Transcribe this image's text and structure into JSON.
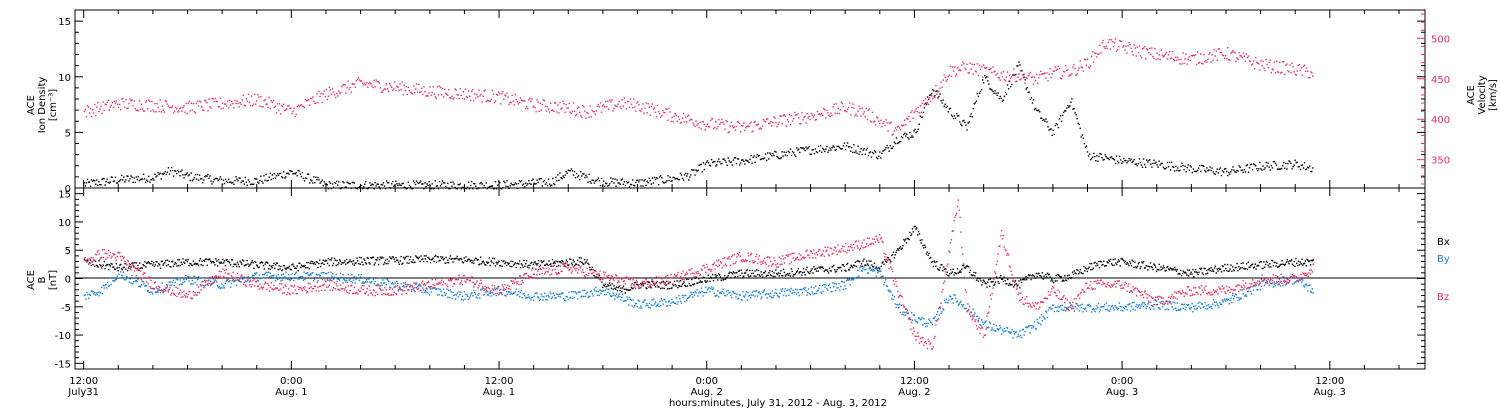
{
  "colors": {
    "black": "#000000",
    "pink": "#e8305a",
    "blue": "#1a7fd8"
  },
  "xaxis": {
    "ticks": [
      {
        "hour": 0,
        "line1": "12:00",
        "line2": "July31"
      },
      {
        "hour": 12,
        "line1": "0:00",
        "line2": "Aug. 1"
      },
      {
        "hour": 24,
        "line1": "12:00",
        "line2": "Aug. 1"
      },
      {
        "hour": 36,
        "line1": "0:00",
        "line2": "Aug. 2"
      },
      {
        "hour": 48,
        "line1": "12:00",
        "line2": "Aug. 2"
      },
      {
        "hour": 60,
        "line1": "0:00",
        "line2": "Aug. 3"
      },
      {
        "hour": 72,
        "line1": "12:00",
        "line2": "Aug. 3"
      }
    ],
    "title": "hours:minutes, July 31, 2012 - Aug.  3, 2012"
  },
  "chart_data": [
    {
      "type": "scatter",
      "xunit": "hours since 12:00 July 31, 2012",
      "xlim": [
        -0.5,
        77.5
      ],
      "left_axis": {
        "label_lines": [
          "ACE",
          "Ion Density",
          "[cm⁻³]"
        ],
        "ylim": [
          0,
          16
        ],
        "ticks": [
          0,
          5,
          10,
          15
        ]
      },
      "right_axis": {
        "label_lines": [
          "ACE",
          "Velocity",
          "[km/s]"
        ],
        "ylim": [
          315,
          535
        ],
        "ticks": [
          350,
          400,
          450,
          500
        ]
      },
      "series": [
        {
          "axis": "left",
          "color": "black",
          "x": [
            0,
            2,
            4,
            5,
            6,
            8,
            10,
            12,
            14,
            16,
            18,
            20,
            22,
            24,
            26,
            27,
            28,
            29,
            30,
            32,
            34,
            35,
            36,
            38,
            40,
            42,
            44,
            46,
            47,
            48,
            49,
            50,
            51,
            52,
            53,
            54,
            55,
            56,
            57,
            58,
            60,
            62,
            64,
            66,
            68,
            70,
            71
          ],
          "y": [
            0.4,
            0.8,
            1.0,
            1.6,
            1.1,
            0.7,
            0.7,
            1.5,
            0.3,
            0.3,
            0.3,
            0.3,
            0.3,
            0.3,
            0.5,
            0.6,
            1.5,
            1.0,
            0.6,
            0.5,
            0.9,
            1.2,
            2.2,
            2.5,
            3.0,
            3.5,
            3.8,
            3.0,
            4.5,
            5.0,
            9.0,
            7.0,
            5.5,
            10.0,
            8.0,
            11.0,
            7.0,
            5.0,
            8.0,
            3.0,
            2.5,
            2.2,
            1.8,
            1.5,
            2.0,
            2.2,
            1.8
          ]
        },
        {
          "axis": "right",
          "color": "pink",
          "x": [
            0,
            2,
            4,
            6,
            8,
            10,
            12,
            14,
            16,
            18,
            20,
            22,
            24,
            26,
            28,
            29,
            30,
            31,
            32,
            34,
            36,
            38,
            40,
            42,
            44,
            45,
            46,
            47,
            48,
            49,
            50,
            51,
            52,
            53,
            54,
            55,
            56,
            57,
            58,
            59,
            60,
            62,
            64,
            66,
            68,
            70,
            71
          ],
          "y": [
            410,
            420,
            418,
            415,
            420,
            425,
            410,
            432,
            445,
            440,
            435,
            432,
            428,
            418,
            415,
            410,
            415,
            420,
            418,
            405,
            395,
            390,
            398,
            405,
            415,
            410,
            398,
            385,
            410,
            430,
            460,
            465,
            460,
            455,
            455,
            450,
            458,
            460,
            470,
            495,
            490,
            480,
            475,
            482,
            468,
            462,
            458
          ]
        },
        {
          "axis": "left",
          "color": "black",
          "x": [
            0
          ],
          "y": [
            0
          ]
        }
      ]
    },
    {
      "type": "scatter",
      "xunit": "hours since 12:00 July 31, 2012",
      "xlim": [
        -0.5,
        77.5
      ],
      "left_axis": {
        "label_lines": [
          "ACE",
          "B",
          "[nT]"
        ],
        "ylim": [
          -16,
          16
        ],
        "ticks": [
          -15,
          -10,
          -5,
          0,
          5,
          10,
          15
        ]
      },
      "zero_line": true,
      "legend": [
        "Bx",
        "By",
        "Bz"
      ],
      "series": [
        {
          "name": "Bx",
          "color": "black",
          "x": [
            0,
            2,
            4,
            6,
            8,
            10,
            12,
            14,
            16,
            18,
            20,
            22,
            24,
            26,
            28,
            29,
            30,
            31,
            32,
            34,
            36,
            38,
            40,
            42,
            44,
            45,
            46,
            47,
            48,
            49,
            50,
            51,
            52,
            53,
            54,
            55,
            56,
            57,
            58,
            59,
            60,
            62,
            64,
            66,
            68,
            70,
            71
          ],
          "y": [
            3,
            2,
            2.5,
            3,
            3,
            2.5,
            2,
            3,
            3.2,
            3.3,
            3.5,
            3.4,
            3,
            2.5,
            3,
            3.2,
            -1,
            -2,
            -1,
            -1,
            0,
            1,
            1,
            1.5,
            2,
            3,
            2,
            5,
            9,
            3,
            1,
            2,
            -1,
            0,
            -1,
            1,
            0,
            0.5,
            2,
            3,
            3,
            2,
            1,
            2,
            2.5,
            3,
            3
          ]
        },
        {
          "name": "By",
          "color": "blue",
          "x": [
            0,
            1,
            2,
            4,
            6,
            8,
            10,
            12,
            14,
            16,
            18,
            20,
            22,
            24,
            26,
            28,
            30,
            32,
            34,
            36,
            38,
            40,
            42,
            44,
            45,
            46,
            47,
            48,
            49,
            50,
            51,
            52,
            53,
            54,
            55,
            56,
            57,
            58,
            60,
            62,
            64,
            66,
            68,
            70,
            71
          ],
          "y": [
            -3,
            -2,
            1,
            -2,
            0,
            -1,
            0.5,
            0.5,
            0.5,
            0,
            -1,
            -2,
            -3,
            -2,
            -3,
            -3,
            -2,
            -4.5,
            -4,
            -2,
            -3,
            -2.5,
            -2,
            -1,
            2,
            1,
            -5,
            -7,
            -8,
            -3,
            -5,
            -8,
            -9,
            -10,
            -8,
            -5,
            -5,
            -5,
            -5,
            -4.5,
            -5,
            -4,
            -1,
            0,
            -2
          ]
        },
        {
          "name": "Bz",
          "color": "pink",
          "x": [
            0,
            1,
            2,
            4,
            6,
            8,
            10,
            12,
            14,
            16,
            18,
            20,
            22,
            24,
            26,
            28,
            30,
            32,
            34,
            36,
            38,
            40,
            42,
            44,
            46,
            47,
            48,
            49,
            50,
            50.5,
            51,
            52,
            53,
            54,
            55,
            56,
            57,
            58,
            60,
            62,
            64,
            66,
            68,
            70,
            71
          ],
          "y": [
            3,
            4.5,
            4,
            -1,
            -3,
            1,
            -1,
            -2,
            -1,
            -2,
            -2,
            -1,
            0,
            -2,
            1,
            2,
            0.5,
            -1,
            0,
            2,
            4,
            3,
            4.5,
            5.5,
            7,
            -2,
            -10,
            -12,
            5,
            14,
            -5,
            -10,
            8,
            -3,
            -5,
            -2,
            -5,
            -1,
            -1,
            -4,
            -2,
            -2,
            0,
            0,
            2
          ]
        }
      ]
    }
  ]
}
